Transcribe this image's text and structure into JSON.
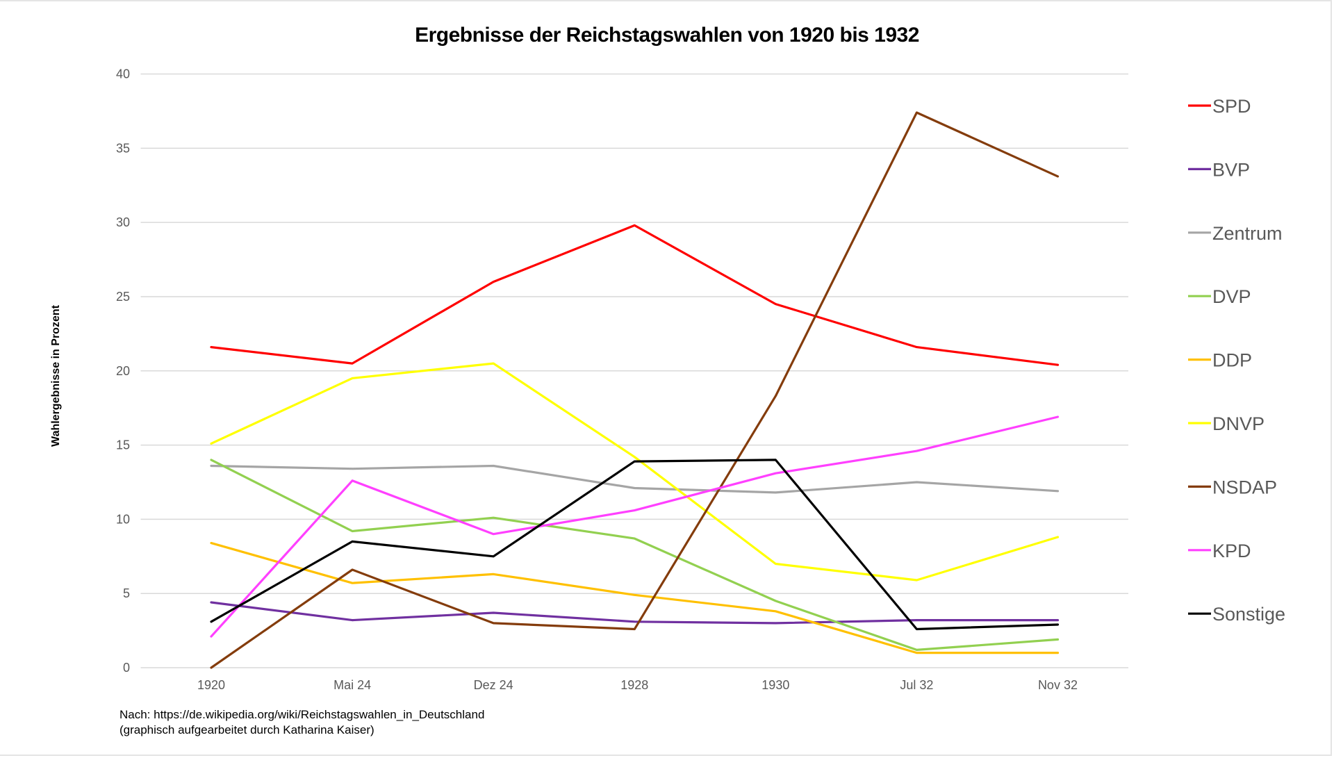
{
  "chart_data": {
    "type": "line",
    "title": "Ergebnisse der Reichstagswahlen von 1920 bis 1932",
    "xlabel": "",
    "ylabel": "Wahlergebnisse in Prozent",
    "ylim": [
      0,
      40
    ],
    "yticks": [
      0,
      5,
      10,
      15,
      20,
      25,
      30,
      35,
      40
    ],
    "grid": true,
    "legend_position": "right",
    "categories": [
      "1920",
      "Mai 24",
      "Dez 24",
      "1928",
      "1930",
      "Jul 32",
      "Nov 32"
    ],
    "series": [
      {
        "name": "SPD",
        "color": "#ff0000",
        "values": [
          21.6,
          20.5,
          26.0,
          29.8,
          24.5,
          21.6,
          20.4
        ]
      },
      {
        "name": "BVP",
        "color": "#7030a0",
        "values": [
          4.4,
          3.2,
          3.7,
          3.1,
          3.0,
          3.2,
          3.2
        ]
      },
      {
        "name": "Zentrum",
        "color": "#a5a5a5",
        "values": [
          13.6,
          13.4,
          13.6,
          12.1,
          11.8,
          12.5,
          11.9
        ]
      },
      {
        "name": "DVP",
        "color": "#92d050",
        "values": [
          14.0,
          9.2,
          10.1,
          8.7,
          4.5,
          1.2,
          1.9
        ]
      },
      {
        "name": "DDP",
        "color": "#ffc000",
        "values": [
          8.4,
          5.7,
          6.3,
          4.9,
          3.8,
          1.0,
          1.0
        ]
      },
      {
        "name": "DNVP",
        "color": "#ffff00",
        "values": [
          15.1,
          19.5,
          20.5,
          14.2,
          7.0,
          5.9,
          8.8
        ]
      },
      {
        "name": "NSDAP",
        "color": "#843c0c",
        "values": [
          0.0,
          6.6,
          3.0,
          2.6,
          18.3,
          37.4,
          33.1
        ]
      },
      {
        "name": "KPD",
        "color": "#ff40ff",
        "values": [
          2.1,
          12.6,
          9.0,
          10.6,
          13.1,
          14.6,
          16.9
        ]
      },
      {
        "name": "Sonstige",
        "color": "#000000",
        "values": [
          3.1,
          8.5,
          7.5,
          13.9,
          14.0,
          2.6,
          2.9
        ]
      }
    ]
  },
  "footnote": {
    "line1": "Nach: https://de.wikipedia.org/wiki/Reichstagswahlen_in_Deutschland",
    "line2": "(graphisch aufgearbeitet durch Katharina Kaiser)"
  }
}
